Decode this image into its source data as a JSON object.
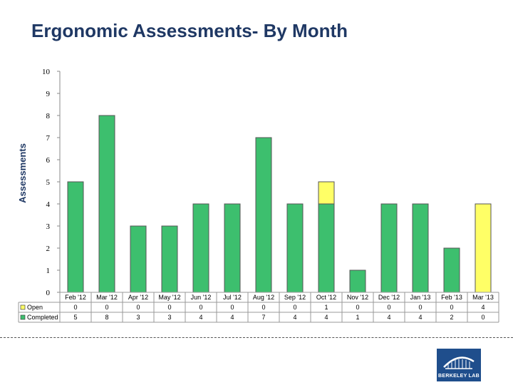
{
  "page": {
    "title": "Ergonomic Assessments- By Month"
  },
  "logo": {
    "text": "BERKELEY LAB"
  },
  "colors": {
    "completed": "#3dbf6e",
    "open": "#ffff66",
    "stroke": "#555555",
    "title": "#1f3864",
    "logo": "#1f4e8c"
  },
  "chart_data": {
    "type": "bar",
    "stacked": true,
    "title": "",
    "xlabel": "",
    "ylabel": "Assessments",
    "ylim": [
      0,
      10
    ],
    "yticks": [
      "0",
      "1",
      "2",
      "3",
      "4",
      "5",
      "6",
      "7",
      "8",
      "9",
      "10"
    ],
    "grid": false,
    "legend": "table-below",
    "categories": [
      "Feb '12",
      "Mar '12",
      "Apr '12",
      "May '12",
      "Jun '12",
      "Jul '12",
      "Aug '12",
      "Sep '12",
      "Oct '12",
      "Nov '12",
      "Dec '12",
      "Jan '13",
      "Feb '13",
      "Mar '13"
    ],
    "series": [
      {
        "name": "Open",
        "values": [
          0,
          0,
          0,
          0,
          0,
          0,
          0,
          0,
          1,
          0,
          0,
          0,
          0,
          4
        ]
      },
      {
        "name": "Completed",
        "values": [
          5,
          8,
          3,
          3,
          4,
          4,
          7,
          4,
          4,
          1,
          4,
          4,
          2,
          0
        ]
      }
    ]
  }
}
